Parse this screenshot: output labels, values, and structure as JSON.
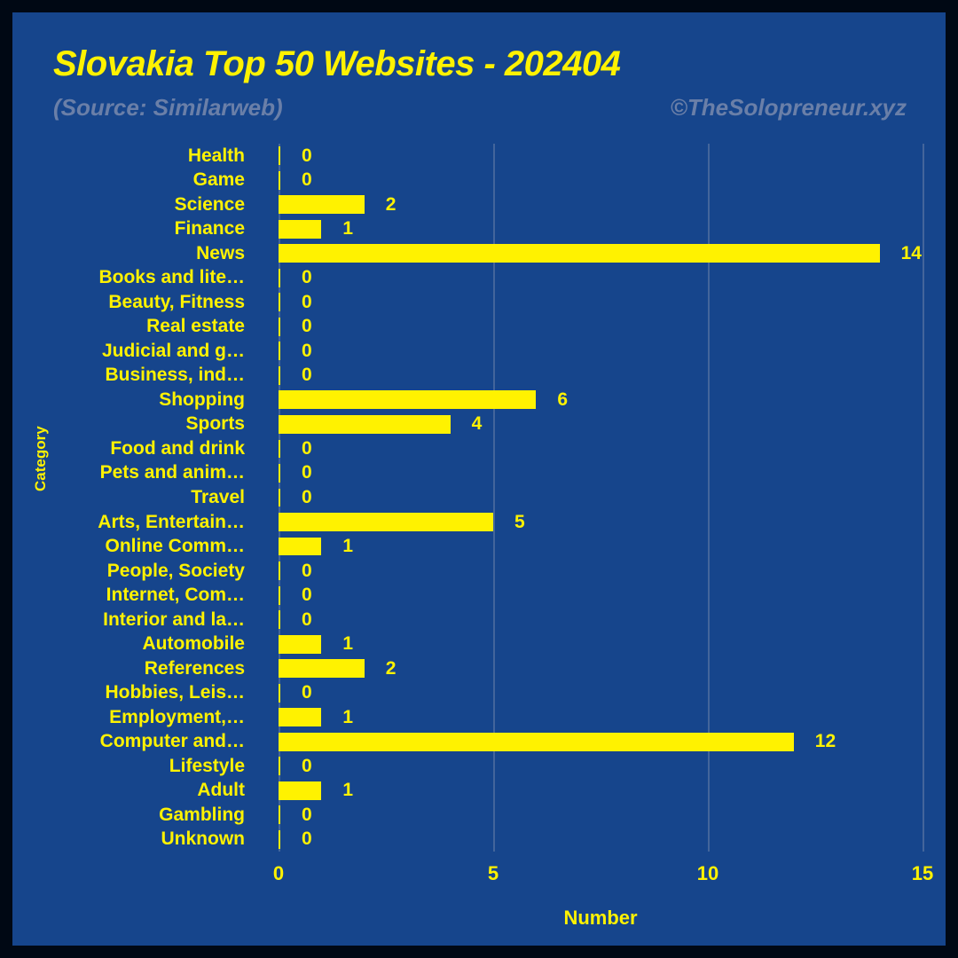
{
  "title": "Slovakia Top 50 Websites - 202404",
  "source": "(Source: Similarweb)",
  "credit": "©TheSolopreneur.xyz",
  "y_axis_label": "Category",
  "x_axis_label": "Number",
  "colors": {
    "accent": "#fff200",
    "background": "#16458c",
    "outer": "#000814",
    "grid": "#6a7fa8"
  },
  "chart": {
    "type": "bar-horizontal",
    "xlim": [
      0,
      15
    ],
    "xtick_step": 5,
    "xticks": [
      "0",
      "5",
      "10",
      "15"
    ],
    "bar_color": "#fff200",
    "categories": [
      {
        "label": "Health",
        "value": 0
      },
      {
        "label": "Game",
        "value": 0
      },
      {
        "label": "Science",
        "value": 2
      },
      {
        "label": "Finance",
        "value": 1
      },
      {
        "label": "News",
        "value": 14
      },
      {
        "label": "Books and lite…",
        "value": 0
      },
      {
        "label": "Beauty, Fitness",
        "value": 0
      },
      {
        "label": "Real estate",
        "value": 0
      },
      {
        "label": "Judicial and g…",
        "value": 0
      },
      {
        "label": "Business, ind…",
        "value": 0
      },
      {
        "label": "Shopping",
        "value": 6
      },
      {
        "label": "Sports",
        "value": 4
      },
      {
        "label": "Food and drink",
        "value": 0
      },
      {
        "label": "Pets and anim…",
        "value": 0
      },
      {
        "label": "Travel",
        "value": 0
      },
      {
        "label": "Arts, Entertain…",
        "value": 5
      },
      {
        "label": "Online Comm…",
        "value": 1
      },
      {
        "label": "People, Society",
        "value": 0
      },
      {
        "label": "Internet, Com…",
        "value": 0
      },
      {
        "label": "Interior and la…",
        "value": 0
      },
      {
        "label": "Automobile",
        "value": 1
      },
      {
        "label": "References",
        "value": 2
      },
      {
        "label": "Hobbies, Leis…",
        "value": 0
      },
      {
        "label": "Employment,…",
        "value": 1
      },
      {
        "label": "Computer and…",
        "value": 12
      },
      {
        "label": "Lifestyle",
        "value": 0
      },
      {
        "label": "Adult",
        "value": 1
      },
      {
        "label": "Gambling",
        "value": 0
      },
      {
        "label": "Unknown",
        "value": 0
      }
    ]
  }
}
